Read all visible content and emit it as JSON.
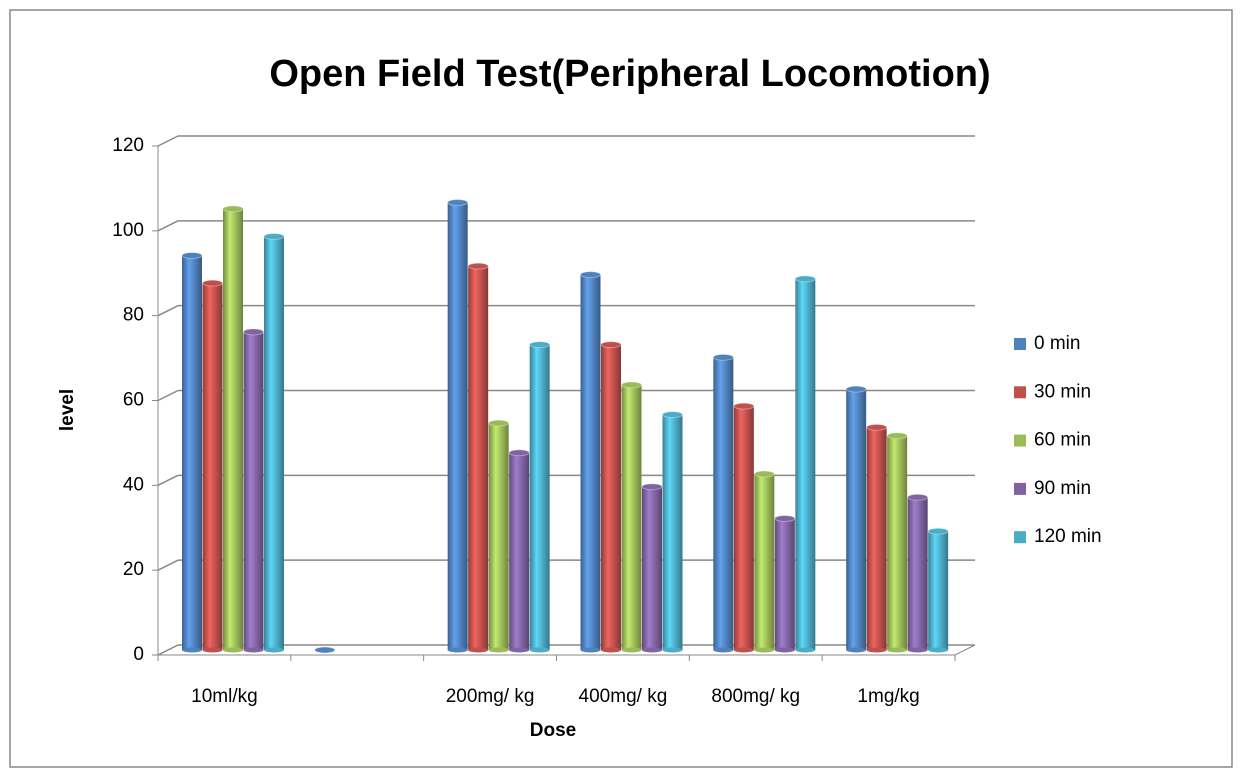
{
  "chart_data": {
    "type": "bar3d",
    "title": "Open Field Test(Peripheral Locomotion)",
    "x_label": "Dose",
    "y_label": "level",
    "categories": [
      "10ml/kg",
      null,
      "200mg/ kg",
      "400mg/ kg",
      "800mg/ kg",
      "1mg/kg"
    ],
    "series": [
      {
        "name": "0 min",
        "color": "#4f81bd",
        "values": [
          93,
          0,
          105.5,
          88.5,
          69,
          61.5
        ]
      },
      {
        "name": "30 min",
        "color": "#c0504d",
        "values": [
          86.5,
          null,
          90.5,
          72,
          57.5,
          52.5
        ]
      },
      {
        "name": "60 min",
        "color": "#9bbb59",
        "values": [
          104,
          null,
          53.5,
          62.5,
          41.5,
          50.5
        ]
      },
      {
        "name": "90 min",
        "color": "#8064a2",
        "values": [
          75,
          null,
          46.5,
          38.5,
          31,
          36
        ]
      },
      {
        "name": "120 min",
        "color": "#4bacc6",
        "values": [
          97.5,
          null,
          72,
          55.5,
          87.5,
          28
        ]
      }
    ],
    "ylim": [
      0,
      120
    ],
    "yticks": [
      0,
      20,
      40,
      60,
      80,
      100,
      120
    ],
    "grid": true,
    "legend": "right"
  }
}
